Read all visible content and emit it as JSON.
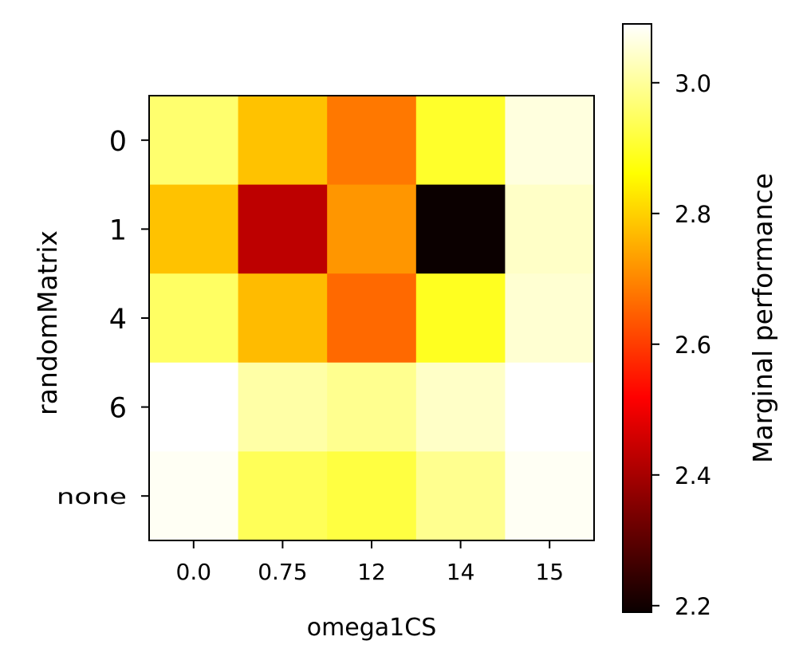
{
  "chart_data": {
    "type": "heatmap",
    "title": "",
    "xlabel": "omega1CS",
    "ylabel": "randomMatrix",
    "x_categories": [
      "0.0",
      "0.75",
      "12",
      "14",
      "15"
    ],
    "y_categories": [
      "0",
      "1",
      "4",
      "6",
      "none"
    ],
    "values": [
      [
        2.96,
        2.78,
        2.68,
        2.9,
        3.06
      ],
      [
        2.78,
        2.42,
        2.72,
        2.19,
        3.04
      ],
      [
        2.95,
        2.77,
        2.66,
        2.89,
        3.05
      ],
      [
        3.09,
        3.01,
        2.99,
        3.04,
        3.09
      ],
      [
        3.08,
        2.94,
        2.92,
        2.99,
        3.08
      ]
    ],
    "colormap": "hot",
    "colorbar": {
      "label": "Marginal performance",
      "min": 2.19,
      "max": 3.09,
      "ticks": [
        "2.2",
        "2.4",
        "2.6",
        "2.8",
        "3.0"
      ]
    },
    "grid": false
  }
}
